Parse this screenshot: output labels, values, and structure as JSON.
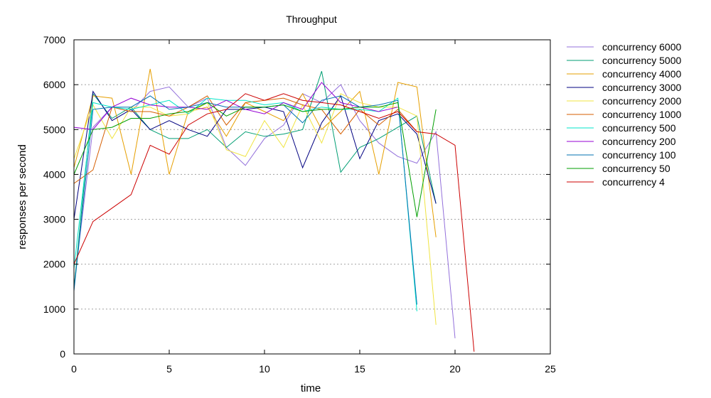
{
  "chart_data": {
    "type": "line",
    "title": "Throughput",
    "xlabel": "time",
    "ylabel": "responses per second",
    "xlim": [
      0,
      25
    ],
    "ylim": [
      0,
      7000
    ],
    "x_ticks": [
      0,
      5,
      10,
      15,
      20,
      25
    ],
    "y_ticks": [
      0,
      1000,
      2000,
      3000,
      4000,
      5000,
      6000,
      7000
    ],
    "grid": "horizontal dotted",
    "legend_position": "top-right outside",
    "series": [
      {
        "name": "concurrency 6000",
        "color": "#9370db",
        "x": [
          0,
          1,
          2,
          3,
          4,
          5,
          6,
          7,
          8,
          9,
          10,
          11,
          12,
          13,
          14,
          15,
          16,
          17,
          18,
          19,
          20
        ],
        "y": [
          1500,
          5050,
          5500,
          5400,
          5850,
          5950,
          5500,
          5700,
          4600,
          4200,
          4800,
          5100,
          5800,
          5600,
          6000,
          5200,
          4700,
          4400,
          4250,
          4950,
          350
        ]
      },
      {
        "name": "concurrency 5000",
        "color": "#009e73",
        "x": [
          0,
          1,
          2,
          3,
          4,
          5,
          6,
          7,
          8,
          9,
          10,
          11,
          12,
          13,
          14,
          15,
          16,
          17,
          18,
          19
        ],
        "y": [
          1450,
          5800,
          5250,
          5500,
          5000,
          4800,
          4800,
          5000,
          4600,
          4950,
          4850,
          4900,
          5000,
          6300,
          4050,
          4600,
          4800,
          5050,
          5300,
          3350
        ]
      },
      {
        "name": "concurrency 4000",
        "color": "#e69f00",
        "x": [
          0,
          1,
          2,
          3,
          4,
          5,
          6,
          7,
          8,
          9,
          10,
          11,
          12,
          13,
          14,
          15,
          16,
          17,
          18,
          19
        ],
        "y": [
          4150,
          5750,
          5700,
          4000,
          6350,
          4000,
          5400,
          5500,
          4850,
          5600,
          5400,
          5200,
          5800,
          5000,
          5400,
          5850,
          4000,
          6050,
          5950,
          2600
        ]
      },
      {
        "name": "concurrency 3000",
        "color": "#000080",
        "x": [
          0,
          1,
          2,
          3,
          4,
          5,
          6,
          7,
          8,
          9,
          10,
          11,
          12,
          13,
          14,
          15,
          16,
          17,
          18,
          19
        ],
        "y": [
          3000,
          5850,
          5200,
          5450,
          5000,
          5200,
          5000,
          4850,
          5450,
          5450,
          5500,
          5400,
          4150,
          5150,
          5750,
          4350,
          5200,
          5350,
          4900,
          3350
        ]
      },
      {
        "name": "concurrency 2000",
        "color": "#f0e442",
        "x": [
          0,
          1,
          2,
          3,
          4,
          5,
          6,
          7,
          8,
          9,
          10,
          11,
          12,
          13,
          14,
          15,
          16,
          17,
          18,
          19
        ],
        "y": [
          4350,
          5550,
          4800,
          5500,
          5500,
          5300,
          5350,
          5600,
          4550,
          4400,
          5200,
          4600,
          5550,
          4700,
          5800,
          5600,
          5500,
          5500,
          5300,
          650
        ]
      },
      {
        "name": "concurrency 1000",
        "color": "#d55e00",
        "x": [
          0,
          1,
          2,
          3,
          4,
          5,
          6,
          7,
          8,
          9,
          10,
          11,
          12,
          13,
          14,
          15,
          16,
          17,
          18
        ],
        "y": [
          3800,
          4100,
          5500,
          5400,
          5400,
          5300,
          5500,
          5750,
          5100,
          5600,
          5650,
          5700,
          5550,
          5450,
          4900,
          5450,
          5100,
          5450,
          4950
        ]
      },
      {
        "name": "concurrency 500",
        "color": "#00e5c8",
        "x": [
          0,
          1,
          2,
          3,
          4,
          5,
          6,
          7,
          8,
          9,
          10,
          11,
          12,
          13,
          14,
          15,
          16,
          17,
          18
        ],
        "y": [
          1900,
          5600,
          5500,
          5450,
          5550,
          5650,
          5350,
          5700,
          5650,
          5650,
          5550,
          5600,
          5400,
          5500,
          5450,
          5450,
          5400,
          5700,
          950
        ]
      },
      {
        "name": "concurrency 200",
        "color": "#9400d3",
        "x": [
          0,
          1,
          2,
          3,
          4,
          5,
          6,
          7,
          8,
          9,
          10,
          11,
          12,
          13,
          14,
          15,
          16,
          17
        ],
        "y": [
          5050,
          5000,
          5500,
          5700,
          5550,
          5500,
          5500,
          5450,
          5650,
          5450,
          5350,
          5600,
          5450,
          6050,
          5600,
          5500,
          5400,
          5500
        ]
      },
      {
        "name": "concurrency 100",
        "color": "#0072b2",
        "x": [
          0,
          1,
          2,
          3,
          4,
          5,
          6,
          7,
          8,
          9,
          10,
          11,
          12,
          13,
          14,
          15,
          16,
          17,
          18
        ],
        "y": [
          1400,
          5450,
          5500,
          5500,
          5750,
          5450,
          5500,
          5600,
          5500,
          5500,
          5500,
          5550,
          5150,
          5650,
          5750,
          5500,
          5550,
          5650,
          1100
        ]
      },
      {
        "name": "concurrency 50",
        "color": "#009e00",
        "x": [
          0,
          1,
          2,
          3,
          4,
          5,
          6,
          7,
          8,
          9,
          10,
          11,
          12,
          13,
          14,
          15,
          16,
          17,
          18,
          19
        ],
        "y": [
          4000,
          5000,
          5050,
          5250,
          5250,
          5350,
          5400,
          5600,
          5300,
          5500,
          5500,
          5550,
          5400,
          5450,
          5450,
          5500,
          5500,
          5600,
          3050,
          5450
        ]
      },
      {
        "name": "concurrency 4",
        "color": "#cc0000",
        "x": [
          0,
          1,
          2,
          3,
          4,
          5,
          6,
          7,
          8,
          9,
          10,
          11,
          12,
          13,
          14,
          15,
          16,
          17,
          18,
          19,
          20,
          21
        ],
        "y": [
          2000,
          2950,
          3250,
          3550,
          4650,
          4450,
          5100,
          5350,
          5450,
          5800,
          5650,
          5800,
          5650,
          5600,
          5550,
          5400,
          5250,
          5400,
          4950,
          4900,
          4650,
          50
        ]
      }
    ]
  }
}
